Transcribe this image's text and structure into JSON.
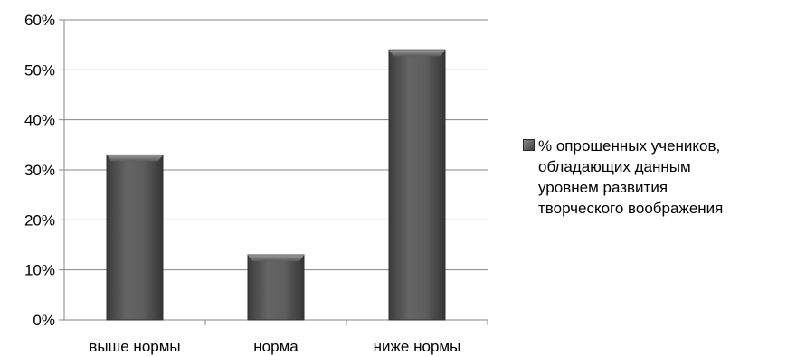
{
  "chart_data": {
    "type": "bar",
    "categories": [
      "выше нормы",
      "норма",
      "ниже нормы"
    ],
    "series": [
      {
        "name": "% опрошенных учеников, обладающих данным уровнем развития творческого воображения",
        "values": [
          33,
          13,
          54
        ]
      }
    ],
    "y_ticks": [
      "0%",
      "10%",
      "20%",
      "30%",
      "40%",
      "50%",
      "60%"
    ],
    "ylim": [
      0,
      60
    ],
    "grid": true,
    "legend_position": "right",
    "colors": {
      "bar": "#595959",
      "bar_edge": "#2f2f2f",
      "grid": "#868686"
    }
  },
  "legend": {
    "lines": [
      "% опрошенных учеников,",
      "обладающих данным",
      "уровнем развития",
      "творческого воображения"
    ]
  }
}
